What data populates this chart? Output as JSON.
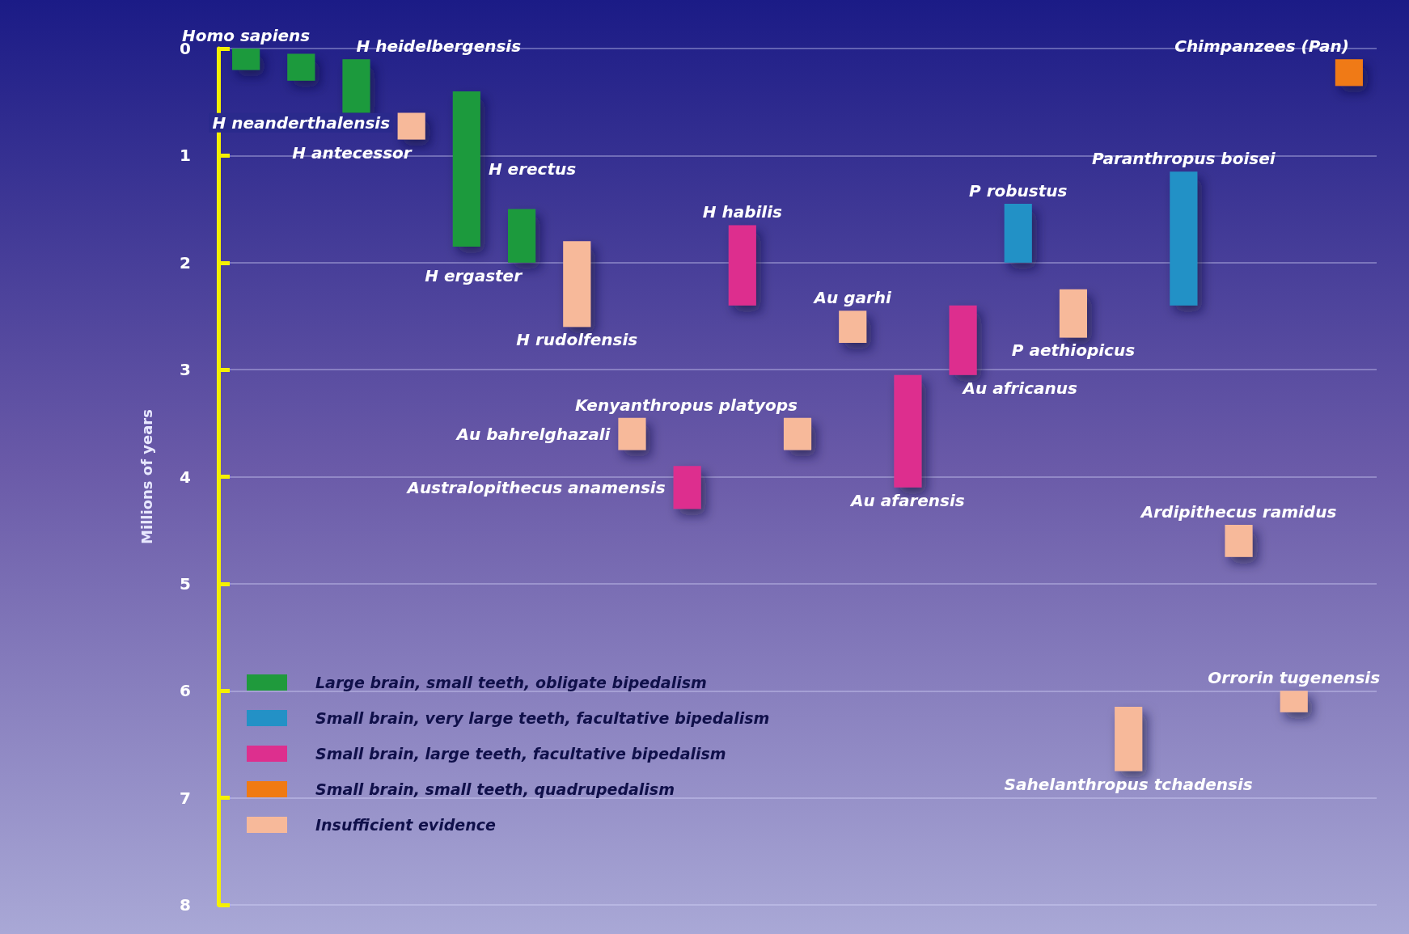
{
  "chart_data": {
    "type": "bar",
    "ylabel": "Millions of years",
    "categories": [
      null,
      null,
      null,
      null,
      null,
      null,
      null,
      null,
      null,
      null,
      null,
      null,
      null,
      null,
      null,
      null,
      null,
      null,
      null,
      null,
      null
    ],
    "annotations": [
      "Homo sapiens",
      "H neanderthalensis",
      "H heidelbergensis",
      "H antecessor",
      "H erectus",
      "H ergaster",
      "H rudolfensis",
      "Au bahrelghazali",
      "Australopithecus anamensis",
      "H habilis",
      "Kenyanthropus platyops",
      "Au garhi",
      "Au afarensis",
      "Au africanus",
      "P robustus",
      "P aethiopicus",
      "Sahelanthropus tchadensis",
      "Paranthropus boisei",
      "Ardipithecus ramidus",
      "Orrorin tugenensis",
      "Chimpanzees (Pan)"
    ],
    "series": [
      {
        "name": "Large brain, small teeth, obligate bipedalism",
        "color": "#1f9a3c",
        "values": [
          0.2,
          0.25,
          0.5,
          null,
          1.45,
          0.5,
          null,
          null,
          null,
          null,
          null,
          null,
          null,
          null,
          null,
          null,
          null,
          null,
          null,
          null,
          null
        ],
        "base": [
          0,
          0.05,
          0.1,
          null,
          0.4,
          1.5,
          null,
          null,
          null,
          null,
          null,
          null,
          null,
          null,
          null,
          null,
          null,
          null,
          null,
          null,
          null
        ]
      },
      {
        "name": "Small brain, very large teeth, facultative bipedalism",
        "color": "#2391c6",
        "values": [
          null,
          null,
          null,
          null,
          null,
          null,
          null,
          null,
          null,
          null,
          null,
          null,
          null,
          null,
          0.55,
          null,
          null,
          1.25,
          null,
          null,
          null
        ],
        "base": [
          null,
          null,
          null,
          null,
          null,
          null,
          null,
          null,
          null,
          null,
          null,
          null,
          null,
          null,
          1.45,
          null,
          null,
          1.15,
          null,
          null,
          null
        ]
      },
      {
        "name": "Small brain, large teeth, facultative bipedalism",
        "color": "#dd2f8e",
        "values": [
          null,
          null,
          null,
          null,
          null,
          null,
          null,
          null,
          0.4,
          0.75,
          null,
          null,
          1.05,
          0.65,
          null,
          null,
          null,
          null,
          null,
          null,
          null
        ],
        "base": [
          null,
          null,
          null,
          null,
          null,
          null,
          null,
          null,
          3.9,
          1.65,
          null,
          null,
          3.05,
          2.4,
          null,
          null,
          null,
          null,
          null,
          null,
          null
        ]
      },
      {
        "name": "Small brain, small teeth, quadrupedalism",
        "color": "#f07a12",
        "values": [
          null,
          null,
          null,
          null,
          null,
          null,
          null,
          null,
          null,
          null,
          null,
          null,
          null,
          null,
          null,
          null,
          null,
          null,
          null,
          null,
          0.25
        ],
        "base": [
          null,
          null,
          null,
          null,
          null,
          null,
          null,
          null,
          null,
          null,
          null,
          null,
          null,
          null,
          null,
          null,
          null,
          null,
          null,
          null,
          0.1
        ]
      },
      {
        "name": "Insufficient evidence",
        "color": "#f7b99a",
        "values": [
          null,
          null,
          null,
          0.25,
          null,
          null,
          0.8,
          0.3,
          null,
          null,
          0.3,
          0.3,
          null,
          null,
          null,
          0.45,
          0.6,
          null,
          0.3,
          0.2,
          null
        ],
        "base": [
          null,
          null,
          null,
          0.6,
          null,
          null,
          1.8,
          3.45,
          null,
          null,
          3.45,
          2.45,
          null,
          null,
          null,
          2.25,
          6.15,
          null,
          4.45,
          6.0,
          null
        ]
      }
    ],
    "ylim": [
      8,
      0
    ],
    "yticks": [
      0,
      1,
      2,
      3,
      4,
      5,
      6,
      7,
      8
    ],
    "grid": "y",
    "legend": "bottom left",
    "tick_labels": "y"
  }
}
